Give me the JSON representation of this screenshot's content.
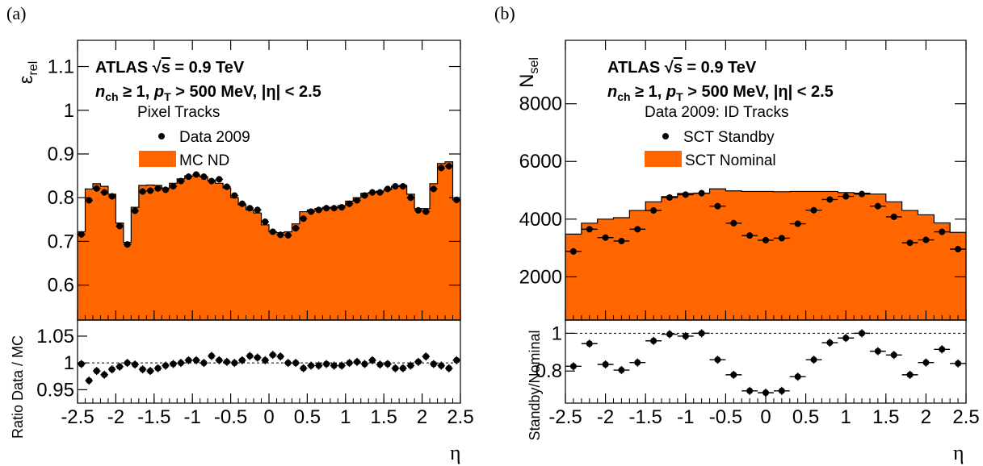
{
  "colors": {
    "mc_fill": "#ff6600",
    "marker": "#000000"
  },
  "panels": [
    {
      "panel_label": "(a)",
      "atlas_label": "ATLAS √s = 0.9 TeV",
      "cuts_label": "nch ≥ 1, pT > 500 MeV, |η| < 2.5",
      "legend_header": "Pixel Tracks",
      "legend_entries": [
        "Data 2009",
        "MC ND"
      ],
      "xlabel": "η",
      "upper_ylabel": "εrel",
      "ratio_ylabel": "Ratio Data / MC"
    },
    {
      "panel_label": "(b)",
      "atlas_label": "ATLAS √s = 0.9 TeV",
      "cuts_label": "nch ≥ 1, pT > 500 MeV, |η| < 2.5",
      "legend_header": "Data 2009: ID Tracks",
      "legend_entries": [
        "SCT Standby",
        "SCT Nominal"
      ],
      "xlabel": "η",
      "upper_ylabel": "Nsel",
      "ratio_ylabel": "Standby/Nominal"
    }
  ],
  "chart_data": [
    {
      "type": "bar",
      "title": "",
      "xlabel": "η",
      "ylabel": "εrel",
      "xlim": [
        -2.5,
        2.5
      ],
      "ylim": [
        0.52,
        1.16
      ],
      "yticks": [
        0.6,
        0.7,
        0.8,
        0.9,
        1,
        1.1
      ],
      "xticks": [
        -2.5,
        -2,
        -1.5,
        -1,
        -0.5,
        0,
        0.5,
        1,
        1.5,
        2,
        2.5
      ],
      "x_bin_edges": [
        -2.5,
        -2.4,
        -2.3,
        -2.2,
        -2.1,
        -2.0,
        -1.9,
        -1.8,
        -1.7,
        -1.6,
        -1.5,
        -1.4,
        -1.3,
        -1.2,
        -1.1,
        -1.0,
        -0.9,
        -0.8,
        -0.7,
        -0.6,
        -0.5,
        -0.4,
        -0.3,
        -0.2,
        -0.1,
        0.0,
        0.1,
        0.2,
        0.3,
        0.4,
        0.5,
        0.6,
        0.7,
        0.8,
        0.9,
        1.0,
        1.1,
        1.2,
        1.3,
        1.4,
        1.5,
        1.6,
        1.7,
        1.8,
        1.9,
        2.0,
        2.1,
        2.2,
        2.3,
        2.4,
        2.5
      ],
      "series": [
        {
          "name": "MC ND",
          "kind": "histogram",
          "values": [
            0.722,
            0.82,
            0.832,
            0.826,
            0.808,
            0.742,
            0.698,
            0.778,
            0.828,
            0.829,
            0.828,
            0.822,
            0.833,
            0.843,
            0.85,
            0.85,
            0.848,
            0.84,
            0.833,
            0.822,
            0.8,
            0.784,
            0.772,
            0.765,
            0.738,
            0.722,
            0.72,
            0.722,
            0.74,
            0.768,
            0.772,
            0.775,
            0.778,
            0.778,
            0.782,
            0.792,
            0.8,
            0.81,
            0.812,
            0.815,
            0.818,
            0.826,
            0.828,
            0.808,
            0.775,
            0.775,
            0.832,
            0.878,
            0.882,
            0.795
          ]
        },
        {
          "name": "Data 2009",
          "kind": "points",
          "values": [
            0.716,
            0.794,
            0.821,
            0.812,
            0.803,
            0.735,
            0.693,
            0.77,
            0.814,
            0.816,
            0.821,
            0.818,
            0.826,
            0.838,
            0.848,
            0.853,
            0.848,
            0.838,
            0.842,
            0.825,
            0.805,
            0.786,
            0.776,
            0.772,
            0.745,
            0.722,
            0.715,
            0.714,
            0.73,
            0.752,
            0.768,
            0.772,
            0.776,
            0.776,
            0.778,
            0.786,
            0.794,
            0.805,
            0.812,
            0.812,
            0.82,
            0.826,
            0.826,
            0.8,
            0.771,
            0.768,
            0.82,
            0.868,
            0.872,
            0.795
          ]
        }
      ],
      "ratio": {
        "ylabel": "Ratio Data / MC",
        "ylim": [
          0.925,
          1.08
        ],
        "yticks": [
          0.95,
          1,
          1.05
        ],
        "reference_line": 1,
        "values": [
          0.998,
          0.967,
          0.985,
          0.978,
          0.988,
          0.993,
          1.0,
          0.997,
          0.988,
          0.985,
          0.99,
          0.995,
          0.998,
          1.0,
          1.005,
          1.005,
          1.0,
          1.013,
          1.005,
          1.002,
          1.0,
          1.005,
          1.013,
          1.01,
          1.005,
          1.015,
          1.012,
          1.0,
          1.0,
          0.99,
          0.995,
          0.995,
          0.998,
          0.995,
          0.995,
          1.0,
          1.002,
          0.998,
          1.005,
          0.997,
          0.998,
          0.99,
          0.99,
          0.995,
          1.002,
          1.012,
          0.998,
          0.995,
          0.99,
          1.005
        ]
      }
    },
    {
      "type": "bar",
      "title": "",
      "xlabel": "η",
      "ylabel": "Nsel",
      "xlim": [
        -2.5,
        2.5
      ],
      "ylim": [
        500,
        10200
      ],
      "yticks": [
        2000,
        4000,
        6000,
        8000
      ],
      "xticks": [
        -2.5,
        -2,
        -1.5,
        -1,
        -0.5,
        0,
        0.5,
        1,
        1.5,
        2,
        2.5
      ],
      "x_bin_edges": [
        -2.5,
        -2.3,
        -2.1,
        -1.9,
        -1.7,
        -1.5,
        -1.3,
        -1.1,
        -0.9,
        -0.7,
        -0.5,
        -0.3,
        -0.1,
        0.1,
        0.3,
        0.5,
        0.7,
        0.9,
        1.1,
        1.3,
        1.5,
        1.7,
        1.9,
        2.1,
        2.3,
        2.5
      ],
      "series": [
        {
          "name": "SCT Nominal",
          "kind": "histogram",
          "values": [
            3480,
            3860,
            4000,
            4050,
            4300,
            4600,
            4780,
            4890,
            4900,
            5050,
            4980,
            4960,
            4960,
            4950,
            4960,
            4960,
            4960,
            4920,
            4900,
            4870,
            4600,
            4300,
            4150,
            3870,
            3540
          ]
        },
        {
          "name": "SCT Standby",
          "kind": "points",
          "values": [
            2880,
            3650,
            3360,
            3240,
            3650,
            4300,
            4750,
            4850,
            4900,
            4450,
            3860,
            3430,
            3270,
            3340,
            3840,
            4310,
            4680,
            4790,
            4870,
            4450,
            4080,
            3180,
            3280,
            3560,
            2960
          ]
        }
      ],
      "ratio": {
        "ylabel": "Standby/Nominal",
        "ylim": [
          0.63,
          1.07
        ],
        "yticks": [
          0.8,
          1
        ],
        "reference_line": 1,
        "values": [
          0.825,
          0.945,
          0.835,
          0.805,
          0.845,
          0.96,
          0.995,
          0.985,
          1.0,
          0.86,
          0.78,
          0.695,
          0.685,
          0.695,
          0.77,
          0.86,
          0.95,
          0.975,
          1.0,
          0.905,
          0.885,
          0.78,
          0.845,
          0.915,
          0.84
        ]
      }
    }
  ]
}
